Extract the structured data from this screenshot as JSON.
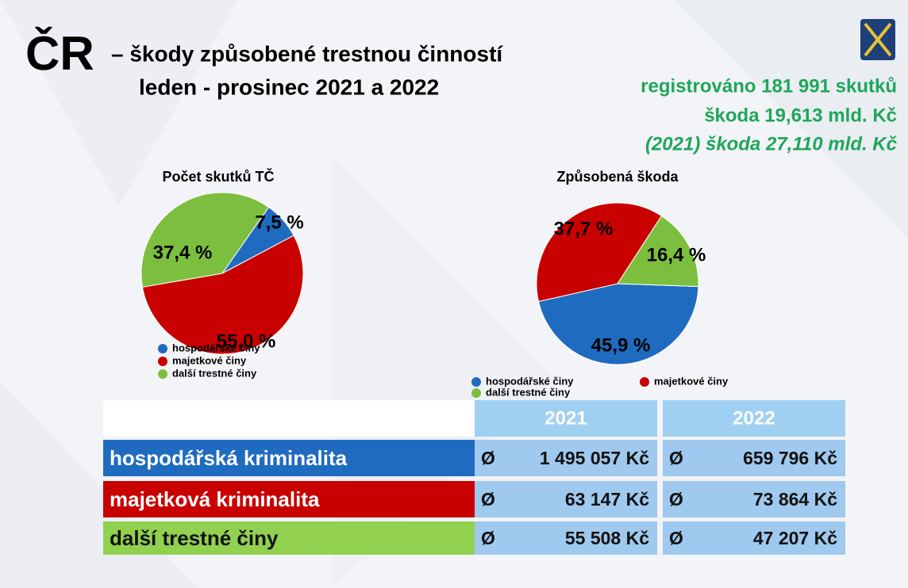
{
  "header": {
    "big": "ČR",
    "title": "– škody způsobené trestnou činností",
    "subtitle": "leden - prosinec 2021 a 2022"
  },
  "stats": [
    "registrováno 181 991 skutků",
    "škoda 19,613 mld. Kč",
    "(2021) škoda 27,110 mld. Kč"
  ],
  "chart_data": [
    {
      "type": "pie",
      "title": "Počet skutků TČ",
      "categories": [
        "hospodářské činy",
        "majetkové činy",
        "další trestné činy"
      ],
      "values": [
        7.5,
        55.0,
        37.4
      ],
      "value_labels": [
        "7,5 %",
        "55,0 %",
        "37,4 %"
      ],
      "colors": [
        "#1f6bbf",
        "#c80000",
        "#7cbf3f"
      ]
    },
    {
      "type": "pie",
      "title": "Způsobená škoda",
      "categories": [
        "hospodářské činy",
        "majetkové činy",
        "další trestné činy"
      ],
      "values": [
        45.9,
        37.7,
        16.4
      ],
      "value_labels": [
        "45,9 %",
        "37,7 %",
        "16,4 %"
      ],
      "colors": [
        "#1f6bbf",
        "#c80000",
        "#7cbf3f"
      ]
    }
  ],
  "table": {
    "columns": [
      "2021",
      "2022"
    ],
    "rows": [
      {
        "label": "hospodářská kriminalita",
        "cells": [
          {
            "symbol": "Ø",
            "amount": "1 495 057 Kč"
          },
          {
            "symbol": "Ø",
            "amount": "659 796 Kč"
          }
        ]
      },
      {
        "label": "majetková kriminalita",
        "cells": [
          {
            "symbol": "Ø",
            "amount": "63 147 Kč"
          },
          {
            "symbol": "Ø",
            "amount": "73 864 Kč"
          }
        ]
      },
      {
        "label": "další trestné činy",
        "cells": [
          {
            "symbol": "Ø",
            "amount": "55 508 Kč"
          },
          {
            "symbol": "Ø",
            "amount": "47 207 Kč"
          }
        ]
      }
    ]
  }
}
